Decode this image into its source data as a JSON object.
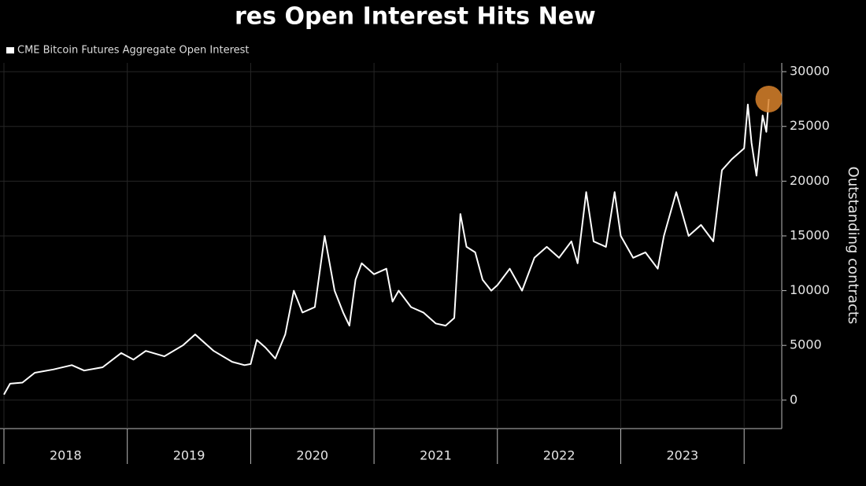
{
  "chart_data": {
    "type": "line",
    "title": "res Open Interest Hits New",
    "y_axis_label": "Outstanding contracts",
    "background": "#000000",
    "grid": true,
    "legend_position": "top-left",
    "highlight_color": "#d9822b",
    "x": [
      2018.0,
      2018.05,
      2018.15,
      2018.25,
      2018.4,
      2018.55,
      2018.65,
      2018.8,
      2018.95,
      2019.05,
      2019.15,
      2019.3,
      2019.45,
      2019.55,
      2019.7,
      2019.85,
      2019.95,
      2020.0,
      2020.05,
      2020.12,
      2020.2,
      2020.28,
      2020.35,
      2020.42,
      2020.52,
      2020.6,
      2020.68,
      2020.75,
      2020.8,
      2020.85,
      2020.9,
      2021.0,
      2021.1,
      2021.15,
      2021.2,
      2021.3,
      2021.4,
      2021.5,
      2021.58,
      2021.65,
      2021.7,
      2021.75,
      2021.82,
      2021.88,
      2021.95,
      2022.0,
      2022.1,
      2022.2,
      2022.3,
      2022.4,
      2022.5,
      2022.6,
      2022.65,
      2022.72,
      2022.78,
      2022.88,
      2022.95,
      2023.0,
      2023.1,
      2023.2,
      2023.3,
      2023.35,
      2023.45,
      2023.55,
      2023.65,
      2023.75,
      2023.82,
      2023.9,
      2024.0,
      2024.03,
      2024.06,
      2024.1,
      2024.15,
      2024.18,
      2024.2
    ],
    "series": [
      {
        "name": "CME Bitcoin Futures Aggregate Open Interest",
        "color": "#ffffff",
        "values": [
          500,
          1500,
          1600,
          2500,
          2800,
          3200,
          2700,
          3000,
          4300,
          3700,
          4500,
          4000,
          5000,
          6000,
          4500,
          3500,
          3200,
          3300,
          5500,
          4800,
          3800,
          6000,
          10000,
          8000,
          8500,
          15000,
          10000,
          8000,
          6800,
          11000,
          12500,
          11500,
          12000,
          9000,
          10000,
          8500,
          8000,
          7000,
          6800,
          7500,
          17000,
          14000,
          13500,
          11000,
          10000,
          10500,
          12000,
          10000,
          13000,
          14000,
          13000,
          14500,
          12500,
          19000,
          14500,
          14000,
          19000,
          15000,
          13000,
          13500,
          12000,
          15000,
          19000,
          15000,
          16000,
          14500,
          21000,
          22000,
          23000,
          27000,
          23500,
          20500,
          26000,
          24500,
          27500
        ]
      }
    ],
    "xlim": [
      2018.0,
      2024.3
    ],
    "xticks": [
      {
        "value": 2018,
        "label": "2018"
      },
      {
        "value": 2019,
        "label": "2019"
      },
      {
        "value": 2020,
        "label": "2020"
      },
      {
        "value": 2021,
        "label": "2021"
      },
      {
        "value": 2022,
        "label": "2022"
      },
      {
        "value": 2023,
        "label": "2023"
      },
      2024
    ],
    "ylim": [
      -2600,
      30800
    ],
    "yticks": [
      0,
      5000,
      10000,
      15000,
      20000,
      25000,
      30000
    ]
  }
}
